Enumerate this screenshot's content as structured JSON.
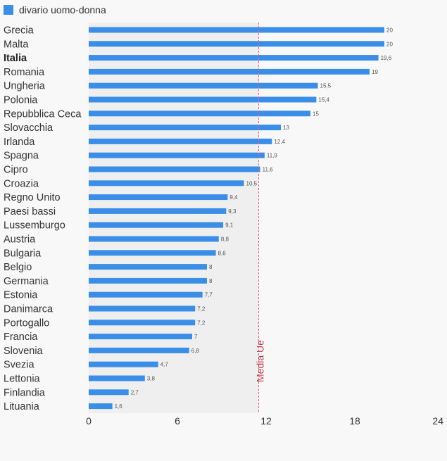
{
  "colors": {
    "bar": "#3a8ee8",
    "reference_line": "#e06a7a",
    "reference_text": "#c23a4e",
    "shade": "#efefef",
    "background": "#f8f8f8"
  },
  "chart_data": {
    "type": "bar",
    "orientation": "horizontal",
    "legend": {
      "position": "top-left",
      "entries": [
        "divario uomo-donna"
      ]
    },
    "series": [
      {
        "name": "divario uomo-donna",
        "values": [
          20,
          20,
          19.6,
          19,
          15.5,
          15.4,
          15,
          13,
          12.4,
          11.9,
          11.6,
          10.5,
          9.4,
          9.3,
          9.1,
          8.8,
          8.6,
          8,
          8,
          7.7,
          7.2,
          7.2,
          7,
          6.8,
          4.7,
          3.8,
          2.7,
          1.6
        ],
        "value_labels": [
          "20",
          "20",
          "19,6",
          "19",
          "15,5",
          "15,4",
          "15",
          "13",
          "12,4",
          "11,9",
          "11,6",
          "10,5",
          "9,4",
          "9,3",
          "9,1",
          "8,8",
          "8,6",
          "8",
          "8",
          "7,7",
          "7,2",
          "7,2",
          "7",
          "6,8",
          "4,7",
          "3,8",
          "2,7",
          "1,6"
        ]
      }
    ],
    "categories": [
      "Grecia",
      "Malta",
      "Italia",
      "Romania",
      "Ungheria",
      "Polonia",
      "Repubblica Ceca",
      "Slovacchia",
      "Irlanda",
      "Spagna",
      "Cipro",
      "Croazia",
      "Regno Unito",
      "Paesi bassi",
      "Lussemburgo",
      "Austria",
      "Bulgaria",
      "Belgio",
      "Germania",
      "Estonia",
      "Danimarca",
      "Portogallo",
      "Francia",
      "Slovenia",
      "Svezia",
      "Lettonia",
      "Finlandia",
      "Lituania"
    ],
    "highlight_category": "Italia",
    "xlim": [
      0,
      24
    ],
    "x_ticks": [
      0,
      6,
      12,
      18,
      24
    ],
    "reference_line": {
      "label": "Media Ue",
      "value": 11.5
    },
    "grid": false
  }
}
